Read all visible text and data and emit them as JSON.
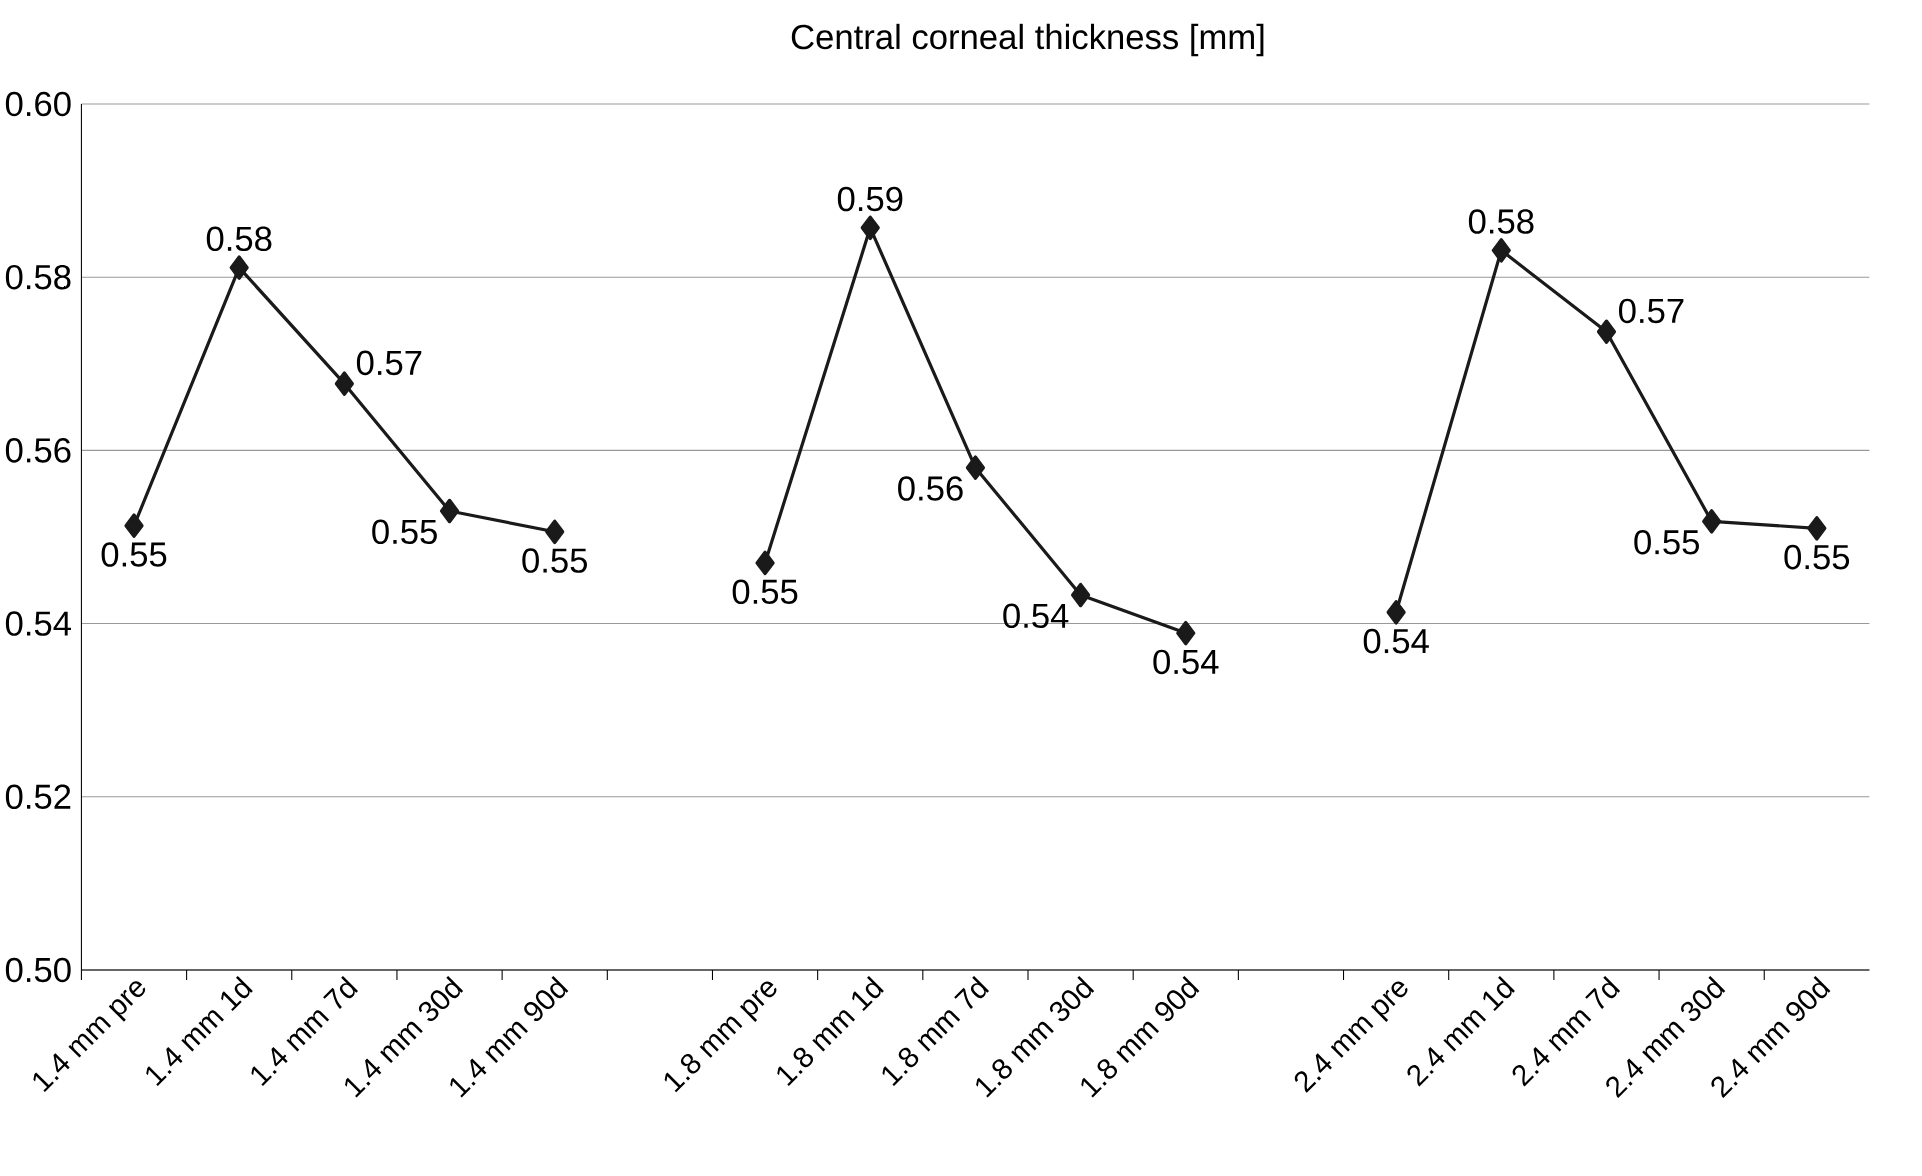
{
  "chart_data": {
    "type": "line",
    "title": "Central corneal thickness [mm]",
    "categories": [
      "1.4 mm pre",
      "1.4 mm 1d",
      "1.4 mm 7d",
      "1.4 mm 30d",
      "1.4 mm 90d",
      null,
      "1.8 mm pre",
      "1.8 mm 1d",
      "1.8 mm 7d",
      "1.8 mm 30d",
      "1.8 mm 90d",
      null,
      "2.4 mm pre",
      "2.4 mm 1d",
      "2.4 mm 7d",
      "2.4 mm 30d",
      "2.4 mm 90d"
    ],
    "series": [
      {
        "color": "#1a1a1a",
        "values": [
          0.5513,
          0.5811,
          0.5677,
          0.553,
          0.5506,
          null,
          0.547,
          0.5857,
          0.558,
          0.5433,
          0.5389,
          null,
          0.5413,
          0.5831,
          0.5737,
          0.5518,
          0.551
        ],
        "value_labels": [
          "0.55",
          "0.58",
          "0.57",
          "0.55",
          "0.55",
          null,
          "0.55",
          "0.59",
          "0.56",
          "0.54",
          "0.54",
          null,
          "0.54",
          "0.58",
          "0.57",
          "0.55",
          "0.55"
        ]
      }
    ],
    "ylim": [
      0.5,
      0.6
    ],
    "yticks": [
      {
        "value": 0.5,
        "label": "0.50"
      },
      {
        "value": 0.52,
        "label": "0.52"
      },
      {
        "value": 0.54,
        "label": "0.54"
      },
      {
        "value": 0.56,
        "label": "0.56"
      },
      {
        "value": 0.58,
        "label": "0.58"
      },
      {
        "value": 0.6,
        "label": "0.60"
      }
    ],
    "grid": "y",
    "marker": "diamond",
    "line_style": "solid"
  }
}
